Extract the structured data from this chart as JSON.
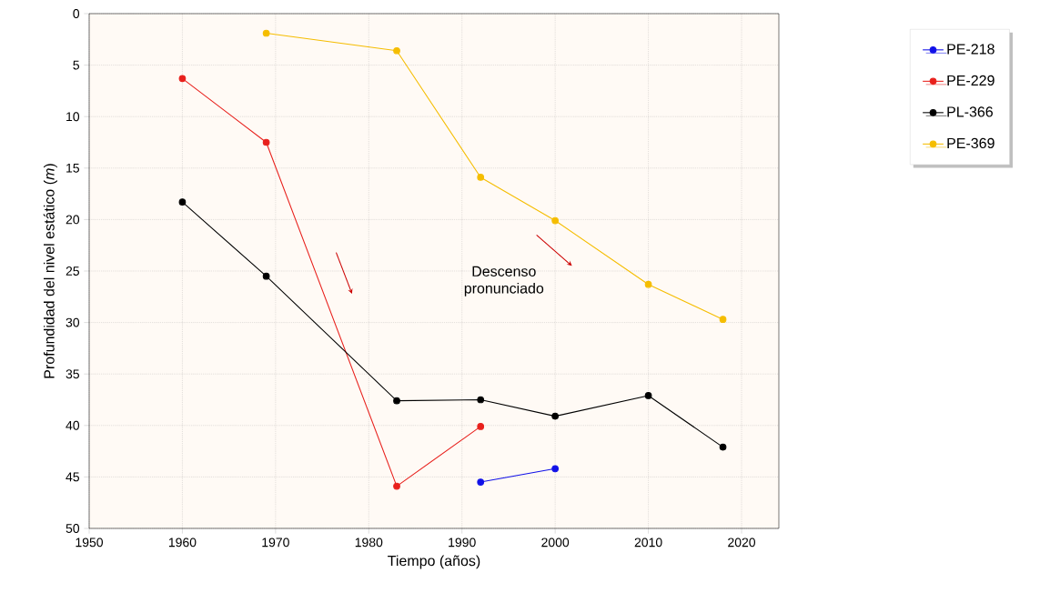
{
  "chart_data": {
    "type": "line",
    "xlabel": "Tiempo (años)",
    "ylabel": "Profundidad del nivel estático (*m*)",
    "xlim": [
      1950,
      2024
    ],
    "xticks": [
      1950,
      1960,
      1970,
      1980,
      1990,
      2000,
      2010,
      2020
    ],
    "ylim": [
      50,
      0
    ],
    "yticks": [
      0,
      5,
      10,
      15,
      20,
      25,
      30,
      35,
      40,
      45,
      50
    ],
    "grid": true,
    "legend": "right",
    "marker": "circle",
    "line_style": "solid",
    "annotations": [
      "Descenso pronunciado"
    ],
    "series": [
      {
        "name": "PE-218",
        "color": "#1010e8",
        "x": [
          1992,
          2000
        ],
        "values": [
          45.5,
          44.2
        ]
      },
      {
        "name": "PE-229",
        "color": "#e8201c",
        "x": [
          1960,
          1969,
          1983,
          1992
        ],
        "values": [
          6.3,
          12.5,
          45.9,
          40.1
        ]
      },
      {
        "name": "PL-366",
        "color": "#000000",
        "x": [
          1960,
          1969,
          1983,
          1992,
          2000,
          2010,
          2018
        ],
        "values": [
          18.3,
          25.5,
          37.6,
          37.5,
          39.1,
          37.1,
          42.1
        ]
      },
      {
        "name": "PE-369",
        "color": "#f5bd00",
        "x": [
          1969,
          1983,
          1992,
          2000,
          2010,
          2018
        ],
        "values": [
          1.9,
          3.6,
          15.9,
          20.1,
          26.3,
          29.7
        ]
      }
    ]
  }
}
